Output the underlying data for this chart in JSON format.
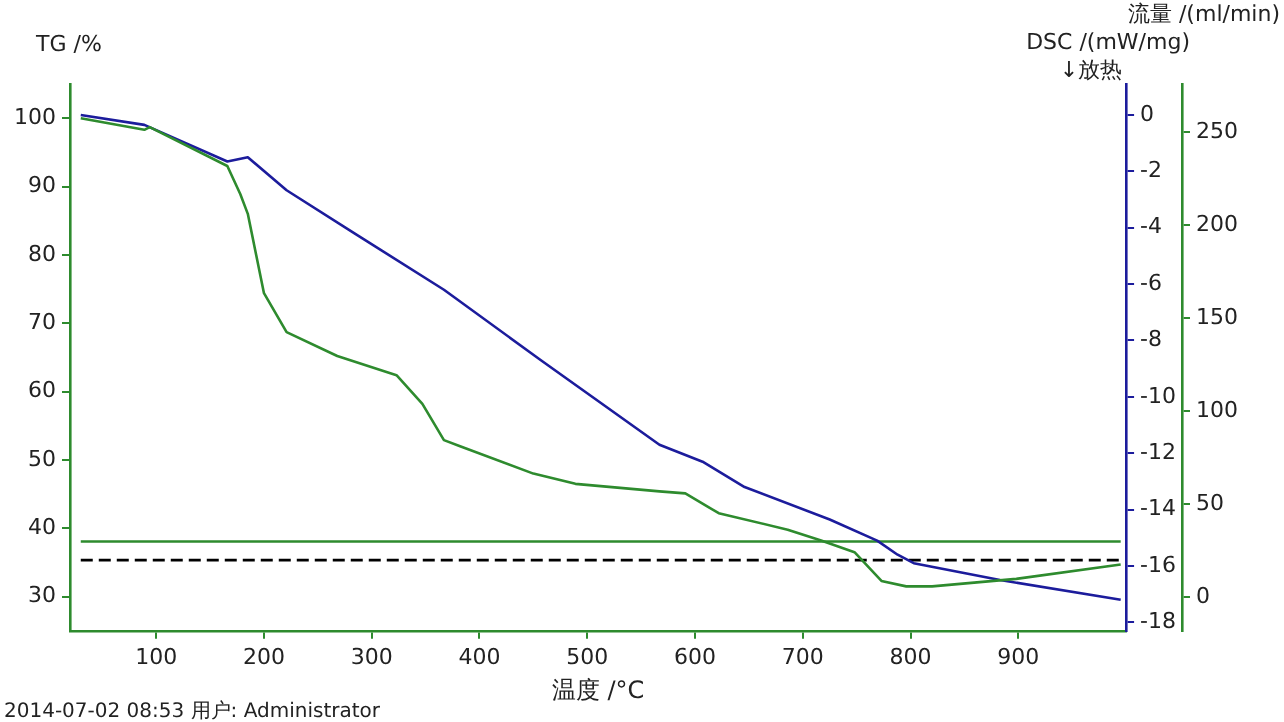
{
  "chart_data": {
    "type": "line",
    "xlabel": "温度 /°C",
    "ylabel": "TG /%",
    "y2label": "DSC /(mW/mg)",
    "y3label": "流量 /(ml/min)",
    "xlim": [
      20,
      1000
    ],
    "xticks": [
      100,
      200,
      300,
      400,
      500,
      600,
      700,
      800,
      900
    ],
    "ylim": [
      25,
      105
    ],
    "yticks": [
      30,
      40,
      50,
      60,
      70,
      80,
      90,
      100
    ],
    "y2lim": [
      -18.3,
      1.1
    ],
    "y2ticks": [
      0,
      -2,
      -4,
      -6,
      -8,
      -10,
      -12,
      -14,
      -16,
      -18
    ],
    "y3lim": [
      -18,
      276
    ],
    "y3ticks": [
      0,
      50,
      100,
      150,
      200,
      250
    ],
    "grid": false,
    "legend": false,
    "annotations": [
      "↓放热",
      "2014-07-02 08:53 用户: Administrator"
    ],
    "series": [
      {
        "color": "#2e8b2e",
        "x": [
          30,
          89,
          94,
          166,
          178,
          185,
          200,
          221,
          268,
          323,
          347,
          367,
          382,
          450,
          489,
          567,
          591,
          622,
          686,
          717,
          748,
          773,
          796,
          820,
          898,
          995
        ],
        "values": [
          100,
          98.3,
          98.7,
          93,
          88.9,
          86,
          74.4,
          68.7,
          65.2,
          62.4,
          58.2,
          52.9,
          52,
          48,
          46.5,
          45.4,
          45.1,
          42.2,
          39.8,
          38.2,
          36.5,
          32.3,
          31.5,
          31.5,
          32.6,
          34.7
        ]
      },
      {
        "color": "#1c1c9c",
        "axis": "y2",
        "x": [
          30,
          89,
          166,
          185,
          221,
          284,
          367,
          457,
          567,
          607,
          646,
          725,
          769,
          788,
          803,
          883,
          995
        ],
        "values": [
          0,
          -0.35,
          -1.65,
          -1.5,
          -2.67,
          -4.2,
          -6.2,
          -8.7,
          -11.7,
          -12.3,
          -13.2,
          -14.35,
          -15.1,
          -15.6,
          -15.9,
          -16.5,
          -17.2
        ]
      },
      {
        "color": "#2e8b2e",
        "axis": "y3",
        "x": [
          30,
          995
        ],
        "values": [
          30,
          30
        ]
      },
      {
        "color": "#000000",
        "axis": "y3",
        "line_style": "dashed",
        "x": [
          30,
          995
        ],
        "values": [
          20,
          20
        ]
      }
    ]
  }
}
